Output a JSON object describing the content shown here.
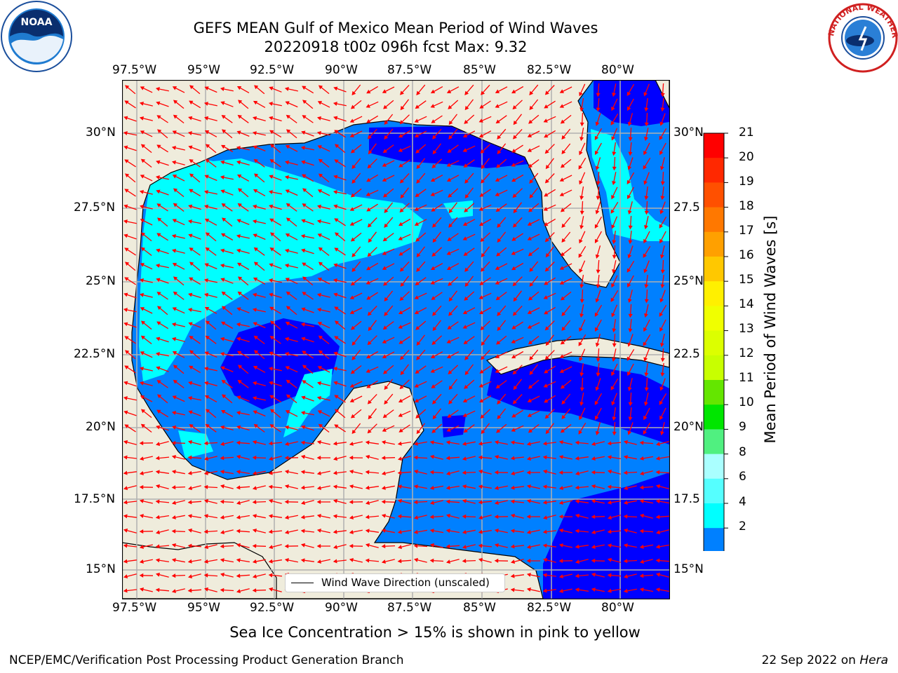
{
  "title": {
    "line1": "GEFS MEAN Gulf of Mexico Mean Period of Wind Waves",
    "line2": "20220918 t00z 096h fcst   Max: 9.32"
  },
  "logos": {
    "left": {
      "name": "noaa-logo",
      "text": "NOAA"
    },
    "right": {
      "name": "national-weather-service-logo",
      "text": "NATIONAL WEATHER SERVICE"
    }
  },
  "map": {
    "lon_labels": [
      "97.5°W",
      "95°W",
      "92.5°W",
      "90°W",
      "87.5°W",
      "85°W",
      "82.5°W",
      "80°W"
    ],
    "lat_labels_left": [
      "30°N",
      "27.5°N",
      "25°N",
      "22.5°N",
      "20°N",
      "17.5°N",
      "15°N"
    ],
    "lat_labels_right": [
      "30°N",
      "27.5",
      "25°N",
      "22.5",
      "20°N",
      "17.5",
      "15°N"
    ],
    "land_color": "#efecdc",
    "grid_color": "#b0b0b0",
    "arrow_color": "#ff0000",
    "legend_label": "Wind Wave Direction (unscaled)"
  },
  "colorbar": {
    "label": "Mean Period of Wind Waves [s]",
    "ticks": [
      "21",
      "20",
      "19",
      "18",
      "17",
      "16",
      "15",
      "14",
      "13",
      "12",
      "11",
      "10",
      "9",
      "8",
      "6",
      "4",
      "2"
    ],
    "colors": [
      "#ff0000",
      "#ff2800",
      "#ff5000",
      "#ff7800",
      "#ffa000",
      "#ffc800",
      "#fff000",
      "#f0ff00",
      "#dcff00",
      "#c8ff00",
      "#64e600",
      "#00e600",
      "#50f080",
      "#aaffff",
      "#55ffff",
      "#00ffff",
      "#0080ff",
      "#0000ff"
    ]
  },
  "caption": "Sea Ice Concentration > 15% is shown in pink to yellow",
  "footer": {
    "left": "NCEP/EMC/Verification Post Processing Product Generation Branch",
    "right_date": "22 Sep 2022 on ",
    "right_machine": "Hera"
  }
}
